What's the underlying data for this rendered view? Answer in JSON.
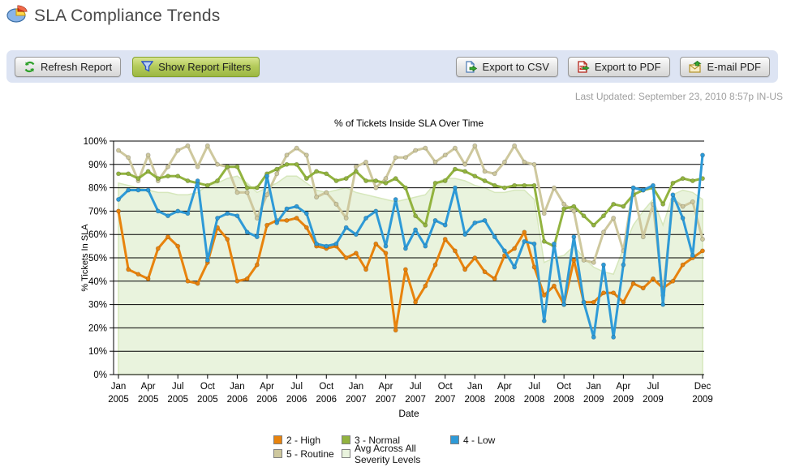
{
  "header": {
    "title": "SLA Compliance Trends"
  },
  "toolbar": {
    "refresh_label": "Refresh Report",
    "filters_label": "Show Report Filters",
    "export_csv_label": "Export to CSV",
    "export_pdf_label": "Export to PDF",
    "email_pdf_label": "E-mail PDF"
  },
  "status": {
    "last_updated": "Last Updated: September 23, 2010 8:57p IN-US"
  },
  "icons": {
    "header": "pie-chart-icon",
    "refresh": "refresh-icon",
    "filter": "funnel-icon",
    "csv": "csv-file-icon",
    "pdf": "pdf-file-icon",
    "email": "email-icon"
  },
  "colors": {
    "high": "#e8830d",
    "normal": "#92b33f",
    "low": "#2e9ad7",
    "routine": "#cec89e",
    "avg_fill": "#e9f3dd",
    "avg_edge": "#d6e7bc",
    "toolbar_bg": "#dde4f3",
    "grid": "#000000"
  },
  "chart_data": {
    "type": "line",
    "title": "% of Tickets Inside SLA Over Time",
    "xlabel": "Date",
    "ylabel": "% Tickets In SLA",
    "ylim": [
      0,
      100
    ],
    "ytick_step": 10,
    "grid": true,
    "legend_position": "bottom",
    "x_months": [
      "Jan 2005",
      "Feb 2005",
      "Mar 2005",
      "Apr 2005",
      "May 2005",
      "Jun 2005",
      "Jul 2005",
      "Aug 2005",
      "Sep 2005",
      "Oct 2005",
      "Nov 2005",
      "Dec 2005",
      "Jan 2006",
      "Feb 2006",
      "Mar 2006",
      "Apr 2006",
      "May 2006",
      "Jun 2006",
      "Jul 2006",
      "Aug 2006",
      "Sep 2006",
      "Oct 2006",
      "Nov 2006",
      "Dec 2006",
      "Jan 2007",
      "Feb 2007",
      "Mar 2007",
      "Apr 2007",
      "May 2007",
      "Jun 2007",
      "Jul 2007",
      "Aug 2007",
      "Sep 2007",
      "Oct 2007",
      "Nov 2007",
      "Dec 2007",
      "Jan 2008",
      "Feb 2008",
      "Mar 2008",
      "Apr 2008",
      "May 2008",
      "Jun 2008",
      "Jul 2008",
      "Aug 2008",
      "Sep 2008",
      "Oct 2008",
      "Nov 2008",
      "Dec 2008",
      "Jan 2009",
      "Feb 2009",
      "Mar 2009",
      "Apr 2009",
      "May 2009",
      "Jun 2009",
      "Jul 2009",
      "Aug 2009",
      "Sep 2009",
      "Oct 2009",
      "Nov 2009",
      "Dec 2009"
    ],
    "x_tick_indices": [
      0,
      3,
      6,
      9,
      12,
      15,
      18,
      21,
      24,
      27,
      30,
      33,
      36,
      39,
      42,
      45,
      48,
      51,
      54,
      59
    ],
    "series": [
      {
        "name": "2 - High",
        "type": "line",
        "color": "#e8830d",
        "values": [
          70,
          45,
          43,
          41,
          54,
          59,
          55,
          40,
          39,
          48,
          63,
          58,
          40,
          41,
          47,
          64,
          66,
          66,
          67,
          63,
          55,
          54,
          55,
          50,
          52,
          45,
          56,
          52,
          19,
          45,
          31,
          38,
          47,
          58,
          53,
          45,
          50,
          44,
          41,
          51,
          54,
          61,
          46,
          34,
          38,
          30,
          49,
          31,
          31,
          35,
          35,
          31,
          39,
          37,
          41,
          37,
          40,
          47,
          50,
          53
        ]
      },
      {
        "name": "3 - Normal",
        "type": "line",
        "color": "#92b33f",
        "values": [
          86,
          86,
          84,
          87,
          84,
          85,
          85,
          83,
          82,
          81,
          83,
          89,
          89,
          80,
          80,
          86,
          88,
          90,
          90,
          84,
          87,
          86,
          83,
          84,
          87,
          83,
          83,
          82,
          84,
          80,
          68,
          64,
          82,
          83,
          88,
          87,
          85,
          83,
          81,
          80,
          81,
          81,
          81,
          57,
          55,
          71,
          72,
          68,
          64,
          68,
          73,
          72,
          77,
          79,
          80,
          73,
          82,
          84,
          83,
          84
        ]
      },
      {
        "name": "4 - Low",
        "type": "line",
        "color": "#2e9ad7",
        "values": [
          75,
          79,
          79,
          79,
          70,
          68,
          70,
          69,
          83,
          49,
          67,
          69,
          68,
          61,
          59,
          85,
          65,
          71,
          72,
          69,
          56,
          55,
          56,
          63,
          60,
          67,
          70,
          55,
          75,
          54,
          62,
          55,
          66,
          64,
          80,
          60,
          65,
          66,
          59,
          53,
          46,
          57,
          56,
          23,
          56,
          30,
          59,
          31,
          16,
          47,
          16,
          47,
          80,
          79,
          81,
          30,
          77,
          67,
          51,
          94
        ]
      },
      {
        "name": "5 - Routine",
        "type": "line",
        "color": "#cec89e",
        "values": [
          96,
          93,
          83,
          94,
          83,
          89,
          96,
          98,
          89,
          98,
          90,
          89,
          78,
          78,
          67,
          77,
          86,
          94,
          97,
          94,
          76,
          78,
          73,
          67,
          89,
          91,
          80,
          84,
          93,
          93,
          96,
          97,
          91,
          94,
          97,
          90,
          98,
          87,
          86,
          91,
          98,
          91,
          90,
          69,
          80,
          73,
          70,
          49,
          48,
          61,
          67,
          53,
          80,
          59,
          73,
          34,
          75,
          72,
          74,
          58
        ]
      },
      {
        "name": "Avg Across All Severity Levels",
        "type": "area",
        "color": "#e9f3dd",
        "edge": "#d6e7bc",
        "values": [
          82,
          81,
          80,
          79,
          78,
          78,
          77,
          77,
          78,
          81,
          82,
          84,
          85,
          82,
          78,
          80,
          82,
          85,
          85,
          82,
          79,
          78,
          79,
          80,
          78,
          77,
          76,
          75,
          74,
          75,
          76,
          77,
          82,
          84,
          84,
          83,
          81,
          80,
          78,
          78,
          79,
          79,
          75,
          48,
          50,
          51,
          55,
          50,
          46,
          44,
          43,
          54,
          64,
          70,
          75,
          64,
          77,
          79,
          78,
          75
        ]
      }
    ],
    "legend_rows": [
      [
        "2 - High",
        "3 - Normal",
        "4 - Low"
      ],
      [
        "5 - Routine",
        "Avg Across All Severity Levels"
      ]
    ]
  }
}
